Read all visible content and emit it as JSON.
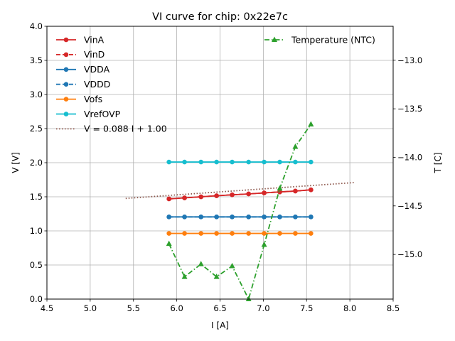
{
  "chart_data": {
    "type": "line",
    "title": "VI curve for chip: 0x22e7c",
    "xlabel": "I [A]",
    "ylabel": "V [V]",
    "y2label": "T [C]",
    "xlim": [
      4.5,
      8.5
    ],
    "ylim": [
      0.0,
      4.0
    ],
    "y2lim": [
      -15.46,
      -12.65
    ],
    "grid": true,
    "xticks": [
      "4.5",
      "5.0",
      "5.5",
      "6.0",
      "6.5",
      "7.0",
      "7.5",
      "8.0",
      "8.5"
    ],
    "xtick_values": [
      4.5,
      5.0,
      5.5,
      6.0,
      6.5,
      7.0,
      7.5,
      8.0,
      8.5
    ],
    "yticks": [
      "0.0",
      "0.5",
      "1.0",
      "1.5",
      "2.0",
      "2.5",
      "3.0",
      "3.5",
      "4.0"
    ],
    "ytick_values": [
      0.0,
      0.5,
      1.0,
      1.5,
      2.0,
      2.5,
      3.0,
      3.5,
      4.0
    ],
    "y2ticks": [
      "−13.0",
      "−13.5",
      "−14.0",
      "−14.5",
      "−15.0"
    ],
    "y2tick_values": [
      -13.0,
      -13.5,
      -14.0,
      -14.5,
      -15.0
    ],
    "x": [
      5.91,
      6.09,
      6.28,
      6.46,
      6.64,
      6.83,
      7.01,
      7.19,
      7.37,
      7.55
    ],
    "series": [
      {
        "name": "VinA",
        "color": "#d62728",
        "style": "solid",
        "marker": "circle",
        "axis": "left",
        "values": [
          1.469,
          1.484,
          1.5,
          1.515,
          1.529,
          1.542,
          1.557,
          1.571,
          1.584,
          1.602
        ]
      },
      {
        "name": "VinD",
        "color": "#d62728",
        "style": "dashed",
        "marker": "circle",
        "axis": "left",
        "values": [
          1.469,
          1.484,
          1.5,
          1.515,
          1.529,
          1.542,
          1.557,
          1.571,
          1.584,
          1.602
        ]
      },
      {
        "name": "VDDA",
        "color": "#1f77b4",
        "style": "solid",
        "marker": "circle",
        "axis": "left",
        "values": [
          1.205,
          1.205,
          1.205,
          1.205,
          1.205,
          1.205,
          1.205,
          1.205,
          1.205,
          1.205
        ]
      },
      {
        "name": "VDDD",
        "color": "#1f77b4",
        "style": "dashed",
        "marker": "circle",
        "axis": "left",
        "values": [
          1.205,
          1.205,
          1.205,
          1.205,
          1.205,
          1.205,
          1.205,
          1.205,
          1.205,
          1.205
        ]
      },
      {
        "name": "Vofs",
        "color": "#ff7f0e",
        "style": "solid",
        "marker": "circle",
        "axis": "left",
        "values": [
          0.963,
          0.963,
          0.963,
          0.963,
          0.963,
          0.963,
          0.963,
          0.963,
          0.963,
          0.963
        ]
      },
      {
        "name": "VrefOVP",
        "color": "#17becf",
        "style": "solid",
        "marker": "circle",
        "axis": "left",
        "values": [
          2.01,
          2.01,
          2.01,
          2.01,
          2.01,
          2.01,
          2.01,
          2.01,
          2.01,
          2.01
        ]
      },
      {
        "name": "Temperature (NTC)",
        "color": "#2ca02c",
        "style": "dashdot",
        "marker": "triangle",
        "axis": "right",
        "values": [
          -14.89,
          -15.23,
          -15.1,
          -15.23,
          -15.12,
          -15.46,
          -14.9,
          -14.32,
          -13.89,
          -13.66
        ]
      }
    ],
    "fit": {
      "name": "V = 0.088 I + 1.00",
      "color": "#8c564b",
      "style": "dotted",
      "slope": 0.088,
      "intercept": 1.0,
      "x_range": [
        5.41,
        8.06
      ]
    },
    "legend": {
      "left_position": "top-left",
      "right_position": "top-right",
      "left_entries": [
        "VinA",
        "VinD",
        "VDDA",
        "VDDD",
        "Vofs",
        "VrefOVP",
        "V = 0.088 I + 1.00"
      ],
      "right_entries": [
        "Temperature (NTC)"
      ]
    }
  }
}
